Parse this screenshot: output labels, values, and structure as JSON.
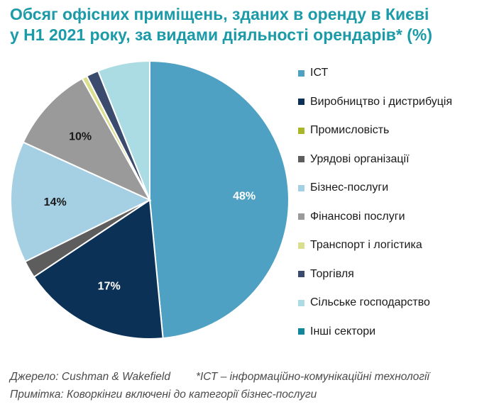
{
  "title": {
    "line1": "Обсяг офісних приміщень, зданих в оренду в Києві",
    "line2": "у Н1 2021 року, за видами діяльності орендарів* (%)"
  },
  "chart_data": {
    "type": "pie",
    "title": "Обсяг офісних приміщень, зданих в оренду в Києві у Н1 2021 року, за видами діяльності орендарів* (%)",
    "legend_position": "right",
    "slices": [
      {
        "label": "ІСТ",
        "value": 48,
        "color": "#4fa1c3",
        "data_label": "48%"
      },
      {
        "label": "Виробництво і дистрибуція",
        "value": 17,
        "color": "#0b3157",
        "data_label": "17%"
      },
      {
        "label": "Промисловість",
        "value": 0,
        "color": "#a8b627",
        "data_label": ""
      },
      {
        "label": "Урядові організації",
        "value": 2,
        "color": "#5d5d5d",
        "data_label": ""
      },
      {
        "label": "Бізнес-послуги",
        "value": 14,
        "color": "#a5cfe2",
        "data_label": "14%"
      },
      {
        "label": "Фінансові послуги",
        "value": 10,
        "color": "#9a9a9a",
        "data_label": "10%"
      },
      {
        "label": "Транспорт і логістика",
        "value": 0.6,
        "color": "#d9df8c",
        "data_label": ""
      },
      {
        "label": "Торгівля",
        "value": 1.4,
        "color": "#3a4b6e",
        "data_label": ""
      },
      {
        "label": "Сільське господарство",
        "value": 6,
        "color": "#acdce3",
        "data_label": ""
      },
      {
        "label": "Інші сектори",
        "value": 0,
        "color": "#12879b",
        "data_label": ""
      }
    ]
  },
  "footnotes": {
    "source": "Джерело: Cushman & Wakefield",
    "ict_note": "*ІСТ – інформаційно-комунікаційні технології",
    "remark": "Примітка: Коворкінги включені до категорії бізнес-послуги"
  }
}
